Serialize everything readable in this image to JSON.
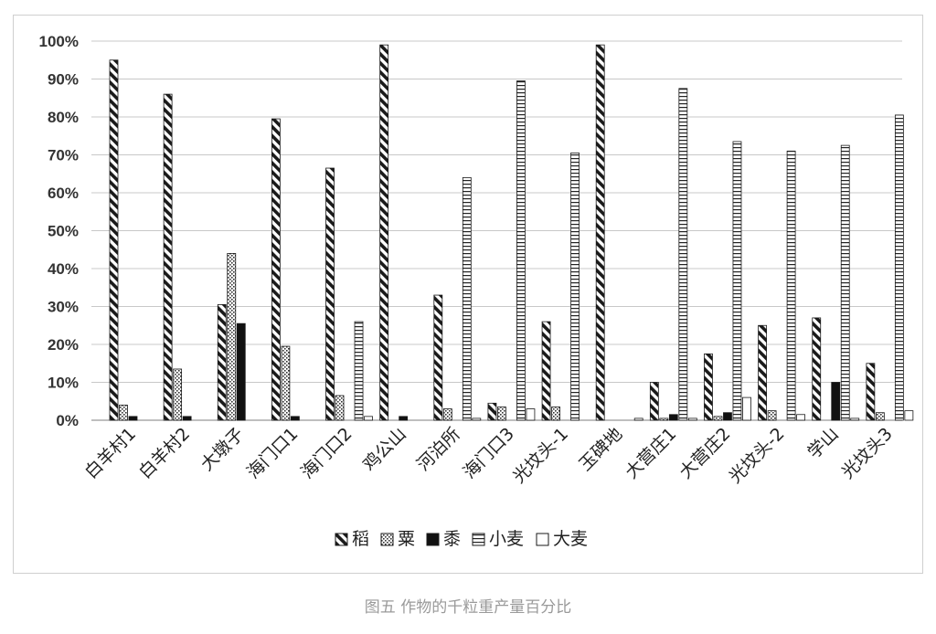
{
  "caption": "图五 作物的千粒重产量百分比",
  "chart_data": {
    "type": "bar",
    "categories": [
      "白羊村1",
      "白羊村2",
      "大墩子",
      "海门口1",
      "海门口2",
      "鸡公山",
      "河泊所",
      "海门口3",
      "光坟头-1",
      "玉碑地",
      "大营庄1",
      "大营庄2",
      "光坟头-2",
      "学山",
      "光坟头3"
    ],
    "y_ticks": [
      "0%",
      "10%",
      "20%",
      "30%",
      "40%",
      "50%",
      "60%",
      "70%",
      "80%",
      "90%",
      "100%"
    ],
    "ylim": [
      0,
      100
    ],
    "grid": true,
    "legend_position": "bottom",
    "series": [
      {
        "name": "稻",
        "pattern": "diagonal",
        "values": [
          95,
          86,
          30.5,
          79.5,
          66.5,
          99,
          33,
          4.5,
          26,
          99,
          10,
          17.5,
          25,
          27,
          15
        ]
      },
      {
        "name": "粟",
        "pattern": "dotted",
        "values": [
          4,
          13.5,
          44,
          19.5,
          6.5,
          0,
          3,
          3.5,
          3.5,
          0,
          0.5,
          1,
          2.5,
          0,
          2
        ]
      },
      {
        "name": "黍",
        "pattern": "solid",
        "values": [
          1,
          1,
          25.5,
          1,
          0,
          1,
          0,
          0,
          0,
          0,
          1.5,
          2,
          0,
          10,
          0
        ]
      },
      {
        "name": "小麦",
        "pattern": "hlines",
        "values": [
          0,
          0,
          0,
          0,
          26,
          0,
          64,
          89.5,
          70.5,
          0,
          87.5,
          73.5,
          71,
          72.5,
          80.5
        ]
      },
      {
        "name": "大麦",
        "pattern": "empty",
        "values": [
          0,
          0,
          0,
          0,
          1,
          0,
          0.5,
          3,
          0,
          0.5,
          0.5,
          6,
          1.5,
          0.5,
          2.5
        ]
      }
    ]
  }
}
